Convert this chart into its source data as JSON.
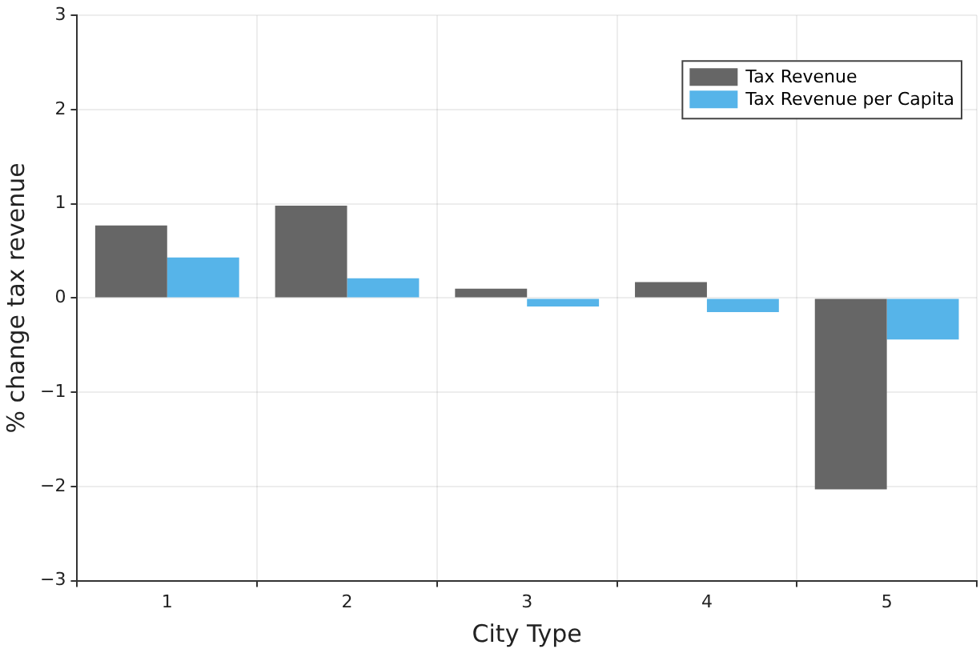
{
  "chart_data": {
    "type": "bar",
    "xlabel": "City Type",
    "ylabel": "% change tax revenue",
    "categories": [
      "1",
      "2",
      "3",
      "4",
      "5"
    ],
    "series": [
      {
        "name": "Tax Revenue",
        "color": "#666666",
        "values": [
          0.77,
          0.98,
          0.1,
          0.17,
          -2.03
        ]
      },
      {
        "name": "Tax Revenue per Capita",
        "color": "#56b4e9",
        "values": [
          0.43,
          0.21,
          -0.09,
          -0.15,
          -0.44
        ]
      }
    ],
    "ylim": [
      -3,
      3
    ],
    "yticks": [
      {
        "value": -3,
        "label": "−3"
      },
      {
        "value": -2,
        "label": "−2"
      },
      {
        "value": -1,
        "label": "−1"
      },
      0,
      1,
      2,
      3
    ],
    "grid": true,
    "legend": "top right"
  }
}
